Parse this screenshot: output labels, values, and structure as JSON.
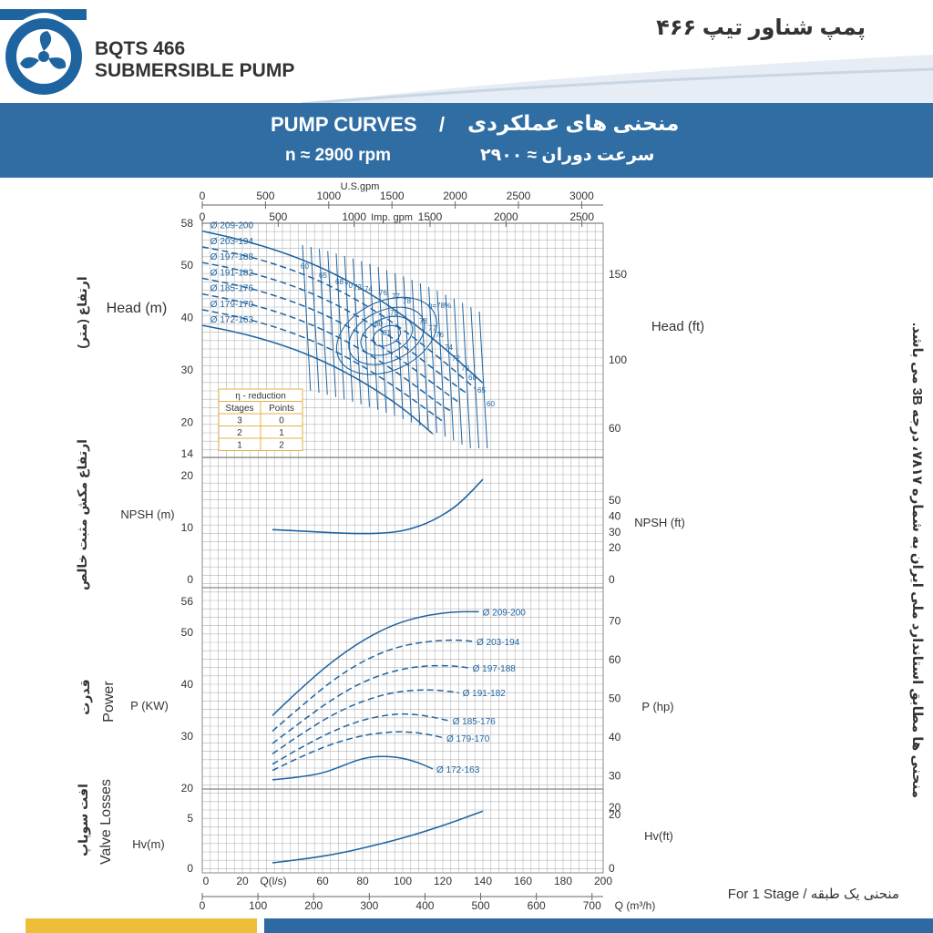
{
  "header": {
    "title_line1": "BQTS 466",
    "title_line2": "SUBMERSIBLE PUMP",
    "title_fa": "پمپ شناور تیپ ۴۶۶",
    "logo_icon": "fan-logo-icon"
  },
  "band": {
    "title_en": "PUMP CURVES",
    "sep": "/",
    "title_fa": "منحنی های عملکردی",
    "speed_en": "n ≈ 2900 rpm",
    "speed_fa": "سرعت دوران ≈ ۲۹۰۰"
  },
  "side_note": "منحنی ها مطابق استاندارد ملی ایران به شماره ۷۸۱۷، درجه 3B می باشد.",
  "footer_note": "For 1 Stage /  منحنی یک طبقه",
  "colors": {
    "band": "#2f6da3",
    "curve": "#1e64a0",
    "grid": "#b5b5b5",
    "yellow": "#efbe38"
  },
  "chart_data": [
    {
      "type": "line",
      "title": "Head",
      "xlabel": "Q(l/s)",
      "x_axes": {
        "usgpm": {
          "label": "U.S.gpm",
          "ticks": [
            0,
            500,
            1000,
            1500,
            2000,
            2500,
            3000
          ]
        },
        "impgpm": {
          "label": "Imp. gpm",
          "ticks": [
            0,
            500,
            1000,
            1500,
            2000,
            2500
          ]
        },
        "ls": {
          "label": "Q(l/s)",
          "ticks": [
            0,
            20,
            40,
            60,
            80,
            100,
            120,
            140,
            160,
            180,
            200
          ]
        },
        "m3h": {
          "label": "Q (m³/h)",
          "ticks": [
            0,
            100,
            200,
            300,
            400,
            500,
            600,
            700
          ]
        }
      },
      "ylabel_left": "Head (m)",
      "ylabel_left_fa": "ارتفاع (متر)",
      "ylabel_right": "Head (ft)",
      "yticks_left": [
        14,
        20,
        30,
        40,
        50,
        58
      ],
      "yticks_right": [
        60,
        100,
        150
      ],
      "series": [
        {
          "name": "Ø 209-200",
          "style": "solid",
          "x": [
            0,
            20,
            40,
            60,
            80,
            100,
            120,
            140
          ],
          "y": [
            56.5,
            54.8,
            52.5,
            49.5,
            45.5,
            40.5,
            34.5,
            27.5
          ]
        },
        {
          "name": "Ø 203-194",
          "style": "dashed",
          "x": [
            0,
            20,
            40,
            60,
            80,
            100,
            120,
            136
          ],
          "y": [
            53.5,
            52,
            49.8,
            46.8,
            42.8,
            37.8,
            31.8,
            26.5
          ]
        },
        {
          "name": "Ø 197-188",
          "style": "dashed",
          "x": [
            0,
            20,
            40,
            60,
            80,
            100,
            120,
            132
          ],
          "y": [
            50.5,
            49,
            46.8,
            43.8,
            39.8,
            34.8,
            28.8,
            25.5
          ]
        },
        {
          "name": "Ø 191-182",
          "style": "dashed",
          "x": [
            0,
            20,
            40,
            60,
            80,
            100,
            120,
            128
          ],
          "y": [
            47.5,
            46,
            43.8,
            40.8,
            36.8,
            31.8,
            26,
            23.8
          ]
        },
        {
          "name": "Ø 185-176",
          "style": "dashed",
          "x": [
            0,
            20,
            40,
            60,
            80,
            100,
            120,
            124
          ],
          "y": [
            44.5,
            43,
            40.8,
            37.8,
            33.8,
            28.8,
            23,
            22.2
          ]
        },
        {
          "name": "Ø 179-170",
          "style": "dashed",
          "x": [
            0,
            20,
            40,
            60,
            80,
            100,
            120
          ],
          "y": [
            41.5,
            40,
            37.8,
            34.8,
            30.8,
            25.8,
            20.2
          ]
        },
        {
          "name": "Ø 172-163",
          "style": "solid",
          "x": [
            0,
            20,
            40,
            60,
            80,
            100,
            115
          ],
          "y": [
            38.5,
            37,
            34.8,
            31.8,
            27.8,
            22.8,
            17.8
          ]
        }
      ],
      "efficiency_labels": [
        "60",
        "65",
        "68",
        "70",
        "72",
        "74",
        "76",
        "77",
        "78",
        "η=78%",
        "79",
        "80",
        "81",
        "78",
        "77",
        "76",
        "74",
        "72",
        "70",
        "68",
        "65",
        "60"
      ],
      "reduction_table": {
        "title": "η - reduction",
        "headers": [
          "Stages",
          "Points"
        ],
        "rows": [
          [
            "3",
            "0"
          ],
          [
            "2",
            "1"
          ],
          [
            "1",
            "2"
          ]
        ]
      }
    },
    {
      "type": "line",
      "title": "NPSH",
      "ylabel_left": "NPSH (m)",
      "ylabel_left_fa": "ارتفاع مکش مثبت خالص",
      "ylabel_right": "NPSH (ft)",
      "yticks_left": [
        0,
        10,
        20
      ],
      "yticks_right": [
        0,
        20,
        30,
        40,
        50
      ],
      "series": [
        {
          "name": "NPSH",
          "x": [
            35,
            50,
            65,
            80,
            95,
            105,
            115,
            125,
            132,
            140
          ],
          "y": [
            9.6,
            9.3,
            9,
            8.8,
            9,
            9.8,
            11.3,
            13.6,
            16,
            19.3
          ]
        }
      ]
    },
    {
      "type": "line",
      "title": "Power",
      "ylabel_left": "P (KW)",
      "ylabel_left_en": "Power",
      "ylabel_left_fa": "قدرت",
      "ylabel_right": "P (hp)",
      "yticks_left": [
        20,
        30,
        40,
        50,
        56
      ],
      "yticks_right": [
        20,
        30,
        40,
        50,
        60,
        70
      ],
      "series": [
        {
          "name": "Ø 209-200",
          "style": "solid",
          "x": [
            35,
            50,
            65,
            80,
            95,
            110,
            125,
            138
          ],
          "y": [
            34,
            39.5,
            44.5,
            48.5,
            51.5,
            53.2,
            54,
            54
          ]
        },
        {
          "name": "Ø 203-194",
          "style": "dashed",
          "x": [
            35,
            50,
            65,
            80,
            95,
            110,
            125,
            135
          ],
          "y": [
            31,
            36,
            40.8,
            44.5,
            47,
            48.2,
            48.6,
            48.3
          ]
        },
        {
          "name": "Ø 197-188",
          "style": "dashed",
          "x": [
            35,
            50,
            65,
            80,
            95,
            110,
            125,
            133
          ],
          "y": [
            28.6,
            33,
            37.2,
            40.5,
            42.6,
            43.6,
            43.6,
            43.2
          ]
        },
        {
          "name": "Ø 191-182",
          "style": "dashed",
          "x": [
            35,
            50,
            65,
            80,
            95,
            110,
            120,
            128
          ],
          "y": [
            26.6,
            30.6,
            34.2,
            36.8,
            38.5,
            39,
            38.8,
            38.4
          ]
        },
        {
          "name": "Ø 185-176",
          "style": "dashed",
          "x": [
            35,
            50,
            65,
            80,
            95,
            105,
            115,
            123
          ],
          "y": [
            24.6,
            28,
            31,
            33.2,
            34.3,
            34.3,
            33.7,
            33
          ]
        },
        {
          "name": "Ø 179-170",
          "style": "dashed",
          "x": [
            35,
            50,
            65,
            80,
            95,
            105,
            115,
            120
          ],
          "y": [
            23.4,
            26.2,
            28.6,
            30.2,
            30.9,
            30.8,
            30.2,
            29.7
          ]
        },
        {
          "name": "Ø 172-163",
          "style": "solid",
          "x": [
            35,
            50,
            60,
            68,
            80,
            90,
            100,
            108,
            115
          ],
          "y": [
            21.6,
            22.2,
            22.9,
            24,
            25.8,
            26.2,
            25.8,
            24.9,
            23.7
          ]
        }
      ]
    },
    {
      "type": "line",
      "title": "Valve Losses",
      "ylabel_left": "Hv(m)",
      "ylabel_left_en": "Valve Losses",
      "ylabel_left_fa": "افت سوپاپ",
      "ylabel_right": "Hv(ft)",
      "yticks_left": [
        0,
        5
      ],
      "yticks_right": [
        0,
        20
      ],
      "series": [
        {
          "name": "Hv",
          "x": [
            35,
            50,
            65,
            80,
            95,
            110,
            125,
            140
          ],
          "y": [
            0.55,
            0.9,
            1.35,
            2,
            2.75,
            3.6,
            4.6,
            5.7
          ]
        }
      ]
    }
  ]
}
